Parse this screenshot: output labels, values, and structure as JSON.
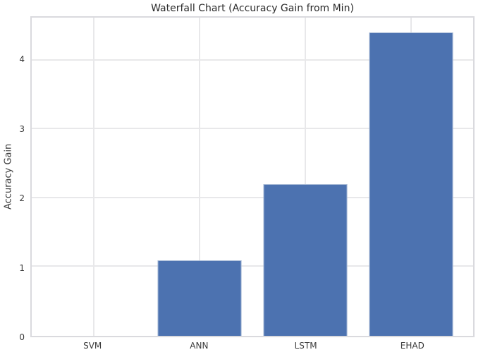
{
  "chart_data": {
    "type": "bar",
    "title": "Waterfall Chart (Accuracy Gain from Min)",
    "xlabel": "",
    "ylabel": "Accuracy Gain",
    "categories": [
      "SVM",
      "ANN",
      "LSTM",
      "EHAD"
    ],
    "values": [
      0,
      1.1,
      2.2,
      4.4
    ],
    "yticks": [
      0,
      1,
      2,
      3,
      4
    ],
    "ylim": [
      0,
      4.62
    ],
    "grid": true,
    "legend": false,
    "colors": {
      "bar_fill": "#4c72b0",
      "bar_edge": "#a5b8d5",
      "grid": "#e8e8ea",
      "spine": "#dadade",
      "tick_text": "#3a3a3a",
      "title_text": "#2b2b2b",
      "background": "#ffffff"
    }
  }
}
